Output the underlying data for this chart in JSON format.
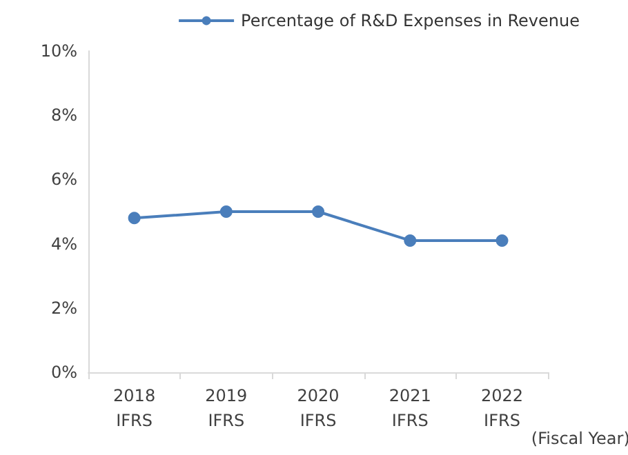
{
  "chart_data": {
    "type": "line",
    "categories": [
      "2018\nIFRS",
      "2019\nIFRS",
      "2020\nIFRS",
      "2021\nIFRS",
      "2022\nIFRS"
    ],
    "xlabel": "(Fiscal Year)",
    "series": [
      {
        "name": "Percentage of R&D Expenses in Revenue",
        "color": "#4a7ebb",
        "values": [
          4.8,
          5.0,
          5.0,
          4.1,
          4.1
        ]
      }
    ],
    "ylim": [
      0,
      10
    ],
    "yticks": [
      {
        "value": 0,
        "label": "0%"
      },
      {
        "value": 2,
        "label": "2%"
      },
      {
        "value": 4,
        "label": "4%"
      },
      {
        "value": 6,
        "label": "6%"
      },
      {
        "value": 8,
        "label": "8%"
      },
      {
        "value": 10,
        "label": "10%"
      }
    ],
    "grid": false,
    "legend": "top right",
    "marker": "circle",
    "line_style": "solid"
  }
}
